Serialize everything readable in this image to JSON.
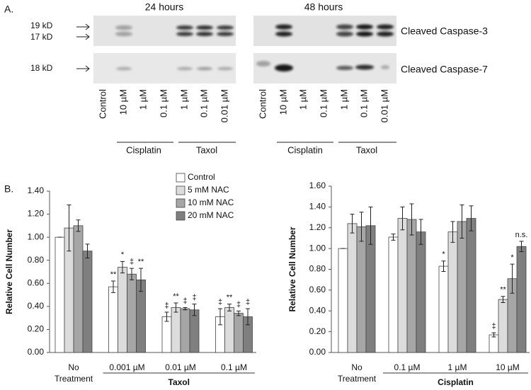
{
  "panel_a": {
    "label": "A.",
    "time_points": [
      "24 hours",
      "48 hours"
    ],
    "markers": [
      "19 kD",
      "17 kD",
      "18 kD"
    ],
    "blots": [
      "Cleaved Caspase-3",
      "Cleaved Caspase-7"
    ],
    "lanes": [
      "Control",
      "10 µM",
      "1 µM",
      "0.1 µM",
      "1 µM",
      "0.1 µM",
      "0.01 µM"
    ],
    "groups": [
      "Cisplatin",
      "Taxol"
    ]
  },
  "panel_b": {
    "label": "B."
  },
  "chart_data": [
    {
      "type": "bar",
      "y_label": "Relative Cell Number",
      "categories": [
        "No Treatment",
        "0.001 µM",
        "0.01 µM",
        "0.1 µM"
      ],
      "group_label": "Taxol",
      "ylim": [
        0,
        1.4
      ],
      "yticks": [
        {
          "value": 0,
          "label": "0.00"
        },
        {
          "value": 0.2,
          "label": "0.20"
        },
        {
          "value": 0.4,
          "label": "0.40"
        },
        {
          "value": 0.6,
          "label": "0.60"
        },
        {
          "value": 0.8,
          "label": "0.80"
        },
        {
          "value": 1,
          "label": "1.00"
        },
        {
          "value": 1.2,
          "label": "1.20"
        },
        {
          "value": 1.4,
          "label": "1.40"
        }
      ],
      "legend": "top-right",
      "series": [
        {
          "name": "Control",
          "color": "#ffffff",
          "values": [
            1.0,
            0.57,
            0.31,
            0.31
          ],
          "errors": [
            0,
            0.05,
            0.04,
            0.07
          ],
          "annotations": [
            null,
            "**",
            "‡",
            "‡"
          ]
        },
        {
          "name": "5 mM NAC",
          "color": "#dcdcdc",
          "values": [
            1.08,
            0.74,
            0.39,
            0.39
          ],
          "errors": [
            0.2,
            0.05,
            0.04,
            0.03
          ],
          "annotations": [
            null,
            "*",
            "**",
            "**"
          ]
        },
        {
          "name": "10 mM NAC",
          "color": "#a6a6a6",
          "values": [
            1.1,
            0.68,
            0.38,
            0.34
          ],
          "errors": [
            0.05,
            0.05,
            0.01,
            0.02
          ],
          "annotations": [
            null,
            "‡",
            "‡",
            "‡"
          ]
        },
        {
          "name": "20 mM NAC",
          "color": "#7f7f7f",
          "values": [
            0.88,
            0.63,
            0.37,
            0.31
          ],
          "errors": [
            0.06,
            0.1,
            0.05,
            0.07
          ],
          "annotations": [
            null,
            "**",
            "‡",
            "‡"
          ]
        }
      ]
    },
    {
      "type": "bar",
      "y_label": "Relative Cell Number",
      "categories": [
        "No Treatment",
        "0.1 µM",
        "1 µM",
        "10 µM"
      ],
      "group_label": "Cisplatin",
      "ylim": [
        0,
        1.6
      ],
      "yticks": [
        {
          "value": 0,
          "label": "0.00"
        },
        {
          "value": 0.2,
          "label": "0.20"
        },
        {
          "value": 0.4,
          "label": "0.40"
        },
        {
          "value": 0.6,
          "label": "0.60"
        },
        {
          "value": 0.8,
          "label": "0.80"
        },
        {
          "value": 1,
          "label": "1.00"
        },
        {
          "value": 1.2,
          "label": "1.20"
        },
        {
          "value": 1.4,
          "label": "1.40"
        },
        {
          "value": 1.6,
          "label": "1.60"
        }
      ],
      "series": [
        {
          "color": "#ffffff",
          "values": [
            1.0,
            1.11,
            0.83,
            0.17
          ],
          "errors": [
            0,
            0.03,
            0.05,
            0.02
          ],
          "annotations": [
            null,
            null,
            "*",
            "‡"
          ]
        },
        {
          "color": "#dcdcdc",
          "values": [
            1.24,
            1.29,
            1.16,
            0.51
          ],
          "errors": [
            0.09,
            0.11,
            0.1,
            0.03
          ],
          "annotations": [
            null,
            null,
            null,
            "**"
          ]
        },
        {
          "color": "#a6a6a6",
          "values": [
            1.21,
            1.28,
            1.26,
            0.71
          ],
          "errors": [
            0.14,
            0.15,
            0.16,
            0.14
          ],
          "annotations": [
            null,
            null,
            null,
            "*"
          ]
        },
        {
          "color": "#7f7f7f",
          "values": [
            1.22,
            1.16,
            1.29,
            1.02
          ],
          "errors": [
            0.18,
            0.12,
            0.12,
            0.05
          ],
          "annotations": [
            null,
            null,
            null,
            "n.s."
          ]
        }
      ]
    }
  ]
}
